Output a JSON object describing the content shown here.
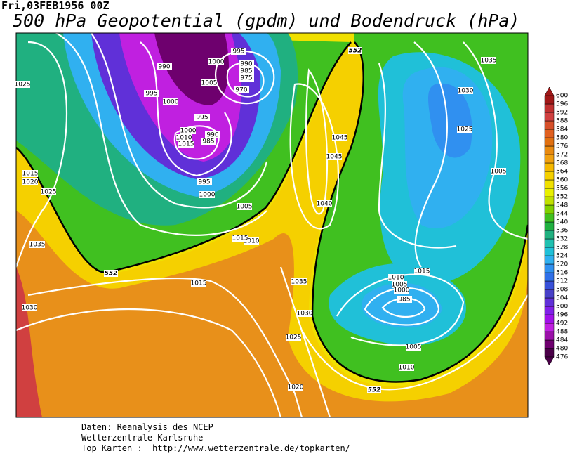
{
  "header": {
    "date": "Fri,03FEB1956 00Z",
    "title": "500 hPa Geopotential (gpdm) und Bodendruck (hPa)"
  },
  "colorbar": {
    "levels": [
      476,
      480,
      484,
      488,
      492,
      496,
      500,
      504,
      508,
      512,
      516,
      520,
      524,
      528,
      532,
      536,
      540,
      544,
      548,
      552,
      556,
      560,
      564,
      568,
      572,
      576,
      580,
      584,
      588,
      592,
      596,
      600
    ],
    "colors": [
      "#4a0048",
      "#6e006e",
      "#9a10a8",
      "#c020e0",
      "#a010e8",
      "#8020e8",
      "#6030d8",
      "#4840c8",
      "#3850d8",
      "#3070e8",
      "#3090f0",
      "#30b0f0",
      "#20c0d8",
      "#20c0b0",
      "#20b080",
      "#20b040",
      "#40c020",
      "#80d000",
      "#c0e000",
      "#e8f000",
      "#f0e000",
      "#f5d000",
      "#f5b800",
      "#f0a010",
      "#e88a10",
      "#e07010",
      "#e06020",
      "#d6502a",
      "#d04040",
      "#c03030",
      "#a01818"
    ]
  },
  "isobar_labels": [
    990,
    995,
    1000,
    990,
    985,
    975,
    970,
    1005,
    995,
    1000,
    995,
    1000,
    1010,
    1015,
    990,
    985,
    995,
    1000,
    1005,
    1010,
    1015,
    1025,
    1015,
    1020,
    1025,
    1035,
    1030,
    1015,
    1040,
    1045,
    1045,
    1035,
    1030,
    1025,
    1020,
    1035,
    1030,
    1025,
    1005,
    1015,
    1010,
    1005,
    1000,
    985,
    1005,
    1010
  ],
  "contour_labels": [
    552,
    552,
    552
  ],
  "footer": {
    "data": "Daten: Reanalysis des NCEP",
    "org": "Wetterzentrale Karlsruhe",
    "link": "Top Karten :  http://www.wetterzentrale.de/topkarten/"
  }
}
